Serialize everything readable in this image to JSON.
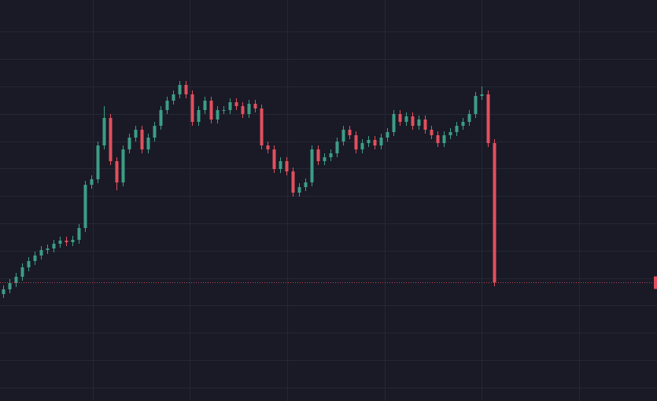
{
  "chart_data": {
    "type": "candlestick",
    "up_color": "#3d9d86",
    "down_color": "#e2505d",
    "grid": true,
    "open": [
      136,
      142,
      150,
      158,
      170,
      178,
      185,
      192,
      194,
      200,
      204,
      202,
      205,
      220,
      275,
      282,
      325,
      360,
      305,
      278,
      320,
      335,
      345,
      320,
      335,
      350,
      370,
      382,
      390,
      402,
      390,
      355,
      370,
      382,
      358,
      370,
      370,
      380,
      375,
      365,
      378,
      372,
      325,
      320,
      295,
      305,
      292,
      265,
      272,
      278,
      320,
      305,
      310,
      315,
      330,
      345,
      338,
      320,
      328,
      332,
      325,
      335,
      342,
      365,
      355,
      362,
      350,
      358,
      345,
      338,
      328,
      338,
      342,
      350,
      355,
      365,
      388,
      390,
      328
    ],
    "high": [
      147,
      155,
      163,
      175,
      183,
      190,
      197,
      199,
      205,
      209,
      209,
      210,
      225,
      280,
      287,
      330,
      375,
      365,
      310,
      325,
      340,
      350,
      350,
      340,
      355,
      375,
      387,
      395,
      407,
      407,
      395,
      375,
      387,
      387,
      375,
      375,
      385,
      385,
      380,
      383,
      383,
      377,
      330,
      325,
      310,
      310,
      297,
      277,
      283,
      325,
      325,
      315,
      320,
      335,
      350,
      350,
      343,
      333,
      337,
      337,
      340,
      347,
      370,
      370,
      367,
      367,
      363,
      363,
      350,
      343,
      343,
      347,
      355,
      360,
      370,
      393,
      400,
      395,
      333
    ],
    "low": [
      131,
      137,
      145,
      153,
      165,
      173,
      180,
      187,
      189,
      195,
      197,
      197,
      200,
      215,
      270,
      277,
      320,
      300,
      268,
      273,
      315,
      330,
      315,
      315,
      330,
      345,
      365,
      377,
      385,
      385,
      350,
      350,
      365,
      353,
      353,
      365,
      365,
      370,
      360,
      360,
      367,
      320,
      315,
      290,
      290,
      287,
      260,
      260,
      267,
      273,
      300,
      300,
      305,
      310,
      325,
      333,
      315,
      315,
      323,
      320,
      320,
      330,
      337,
      350,
      350,
      345,
      345,
      340,
      333,
      323,
      323,
      333,
      337,
      345,
      350,
      360,
      383,
      323,
      146
    ],
    "close": [
      142,
      150,
      158,
      170,
      178,
      185,
      192,
      194,
      200,
      204,
      202,
      205,
      220,
      275,
      282,
      325,
      360,
      305,
      278,
      320,
      335,
      345,
      320,
      335,
      350,
      370,
      382,
      390,
      402,
      390,
      355,
      370,
      382,
      358,
      370,
      370,
      380,
      375,
      365,
      378,
      372,
      325,
      320,
      295,
      305,
      292,
      265,
      272,
      278,
      320,
      305,
      310,
      315,
      330,
      345,
      338,
      320,
      328,
      332,
      325,
      335,
      342,
      365,
      355,
      362,
      350,
      358,
      345,
      338,
      328,
      338,
      342,
      350,
      355,
      365,
      388,
      390,
      328,
      151
    ],
    "xlim": [
      -0.5,
      103.875
    ],
    "xticks": [
      14.25,
      29.625,
      45.125,
      60.625,
      76,
      91.5
    ],
    "ylim": [
      0,
      510
    ],
    "yticks": [
      17,
      52,
      87,
      122,
      156,
      191,
      226,
      261,
      296,
      330,
      365,
      400,
      435,
      470
    ]
  }
}
